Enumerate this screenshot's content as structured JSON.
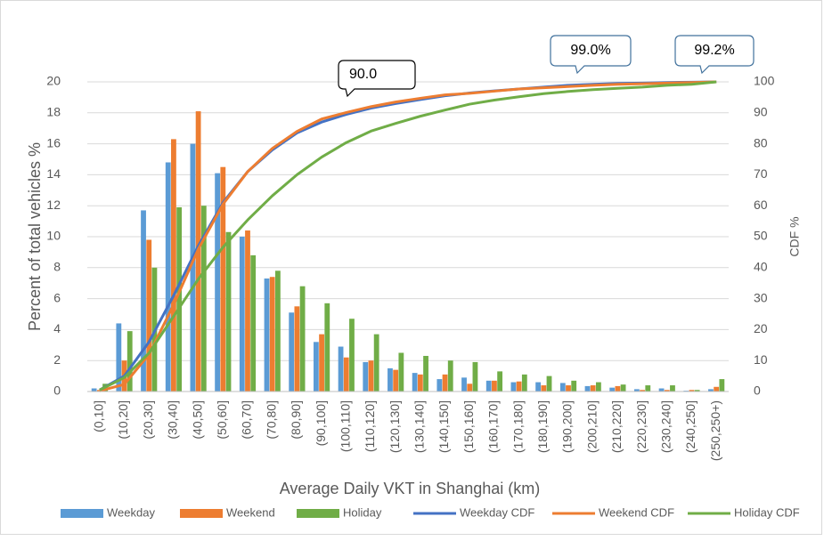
{
  "chart_data": {
    "type": "bar",
    "ylabel": "Percent of total vehicles %",
    "y2label": "CDF %",
    "xlabel": "Average Daily VKT in Shanghai (km)",
    "categories": [
      "(0,10]",
      "(10,20]",
      "(20,30]",
      "(30,40]",
      "(40,50]",
      "(50,60]",
      "(60,70]",
      "(70,80]",
      "(80,90]",
      "(90,100]",
      "(100,110]",
      "(110,120]",
      "(120,130]",
      "(130,140]",
      "(140,150]",
      "(150,160]",
      "(160,170]",
      "(170,180]",
      "(180,190]",
      "(190,200]",
      "(200,210]",
      "(210,220]",
      "(220,230]",
      "(230,240]",
      "(240,250]",
      "(250,250+)"
    ],
    "ylim": [
      0,
      20
    ],
    "yticks": [
      0,
      2,
      4,
      6,
      8,
      10,
      12,
      14,
      16,
      18,
      20
    ],
    "y2lim": [
      0,
      100
    ],
    "y2ticks": [
      0,
      10,
      20,
      30,
      40,
      50,
      60,
      70,
      80,
      90,
      100
    ],
    "grid": true,
    "legend": "bottom",
    "series": [
      {
        "name": "Weekday",
        "type": "bar",
        "color": "#5b9bd5",
        "values": [
          0.2,
          4.4,
          11.7,
          14.8,
          16.0,
          14.1,
          10.0,
          7.3,
          5.1,
          3.2,
          2.9,
          1.9,
          1.5,
          1.2,
          0.8,
          0.9,
          0.7,
          0.6,
          0.6,
          0.55,
          0.35,
          0.25,
          0.15,
          0.2,
          0.05,
          0.15
        ]
      },
      {
        "name": "Weekend",
        "type": "bar",
        "color": "#ed7d31",
        "values": [
          0.1,
          2.0,
          9.8,
          16.3,
          18.1,
          14.5,
          10.4,
          7.4,
          5.5,
          3.7,
          2.2,
          2.0,
          1.4,
          1.1,
          1.1,
          0.5,
          0.7,
          0.65,
          0.4,
          0.4,
          0.4,
          0.35,
          0.1,
          0.1,
          0.1,
          0.3
        ]
      },
      {
        "name": "Holiday",
        "type": "bar",
        "color": "#70ad47",
        "values": [
          0.5,
          3.9,
          8.0,
          11.9,
          12.0,
          10.3,
          8.8,
          7.8,
          6.8,
          5.7,
          4.7,
          3.7,
          2.5,
          2.3,
          2.0,
          1.9,
          1.3,
          1.1,
          1.0,
          0.7,
          0.6,
          0.45,
          0.4,
          0.4,
          0.1,
          0.8
        ]
      },
      {
        "name": "Weekday CDF",
        "type": "line",
        "axis": "y2",
        "color": "#4472c4",
        "values": [
          0.5,
          5,
          16,
          31,
          47,
          61,
          71,
          78,
          83.5,
          87,
          89.5,
          91.5,
          93,
          94.3,
          95.5,
          96.4,
          97.1,
          97.7,
          98.3,
          98.9,
          99.2,
          99.5,
          99.6,
          99.8,
          99.9,
          100
        ]
      },
      {
        "name": "Weekend CDF",
        "type": "line",
        "axis": "y2",
        "color": "#ed7d31",
        "values": [
          0.2,
          2.3,
          12,
          28,
          46,
          60.5,
          71,
          78.5,
          84,
          88,
          90.1,
          92,
          93.5,
          94.7,
          95.8,
          96.3,
          97,
          97.7,
          98.1,
          98.5,
          98.9,
          99.2,
          99.4,
          99.6,
          99.8,
          100
        ]
      },
      {
        "name": "Holiday CDF",
        "type": "line",
        "axis": "y2",
        "color": "#70ad47",
        "values": [
          0.5,
          4.5,
          12.4,
          24.3,
          36.3,
          46.6,
          55.4,
          63.2,
          70,
          75.7,
          80.4,
          84.1,
          86.6,
          88.9,
          90.9,
          92.8,
          94.1,
          95.2,
          96.2,
          96.9,
          97.5,
          97.9,
          98.3,
          98.9,
          99.2,
          100
        ]
      }
    ],
    "annotations": [
      "90.0",
      "99.0%",
      "99.2%"
    ]
  }
}
